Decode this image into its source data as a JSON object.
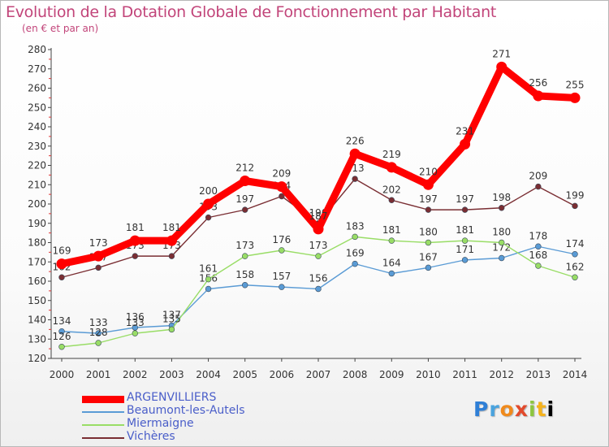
{
  "header": {
    "title": "Evolution de la Dotation Globale de Fonctionnement par Habitant",
    "subtitle": "(en € et par an)"
  },
  "brand": {
    "letters": [
      "P",
      "r",
      "o",
      "x",
      "i",
      "t",
      "i"
    ]
  },
  "chart_data": {
    "type": "line",
    "title": "Evolution de la Dotation Globale de Fonctionnement par Habitant",
    "subtitle": "(en € et par an)",
    "xlabel": "",
    "ylabel": "",
    "x": [
      "2000",
      "2001",
      "2002",
      "2003",
      "2004",
      "2005",
      "2006",
      "2007",
      "2008",
      "2009",
      "2010",
      "2011",
      "2012",
      "2013",
      "2014"
    ],
    "ylim": [
      120,
      280
    ],
    "yticks": [
      120,
      130,
      140,
      150,
      160,
      170,
      180,
      190,
      200,
      210,
      220,
      230,
      240,
      250,
      260,
      270,
      280
    ],
    "grid": false,
    "legend_position": "bottom-left",
    "series": [
      {
        "name": "ARGENVILLIERS",
        "color": "#ff0000",
        "emphasis": true,
        "values": [
          169,
          173,
          181,
          181,
          200,
          212,
          209,
          187,
          226,
          219,
          210,
          231,
          271,
          256,
          255
        ],
        "labels": [
          "169",
          "173",
          "181",
          "181",
          "200",
          "212",
          "209",
          "187",
          "226",
          "219",
          "210",
          "231",
          "271",
          "256",
          "255"
        ]
      },
      {
        "name": "Beaumont-les-Autels",
        "color": "#5a9bd5",
        "values": [
          134,
          133,
          136,
          137,
          156,
          158,
          157,
          156,
          169,
          164,
          167,
          171,
          172,
          178,
          174
        ],
        "labels": [
          "134",
          "133",
          "136",
          "137",
          "156",
          "158",
          "157",
          "156",
          "169",
          "164",
          "167",
          "171",
          "172",
          "178",
          "174"
        ]
      },
      {
        "name": "Miermaigne",
        "color": "#99dd66",
        "values": [
          126,
          128,
          133,
          135,
          161,
          173,
          176,
          173,
          183,
          181,
          180,
          181,
          180,
          168,
          162
        ],
        "labels": [
          "126",
          "128",
          "133",
          "135",
          "161",
          "173",
          "176",
          "173",
          "183",
          "181",
          "180",
          "181",
          "180",
          "168",
          "162"
        ]
      },
      {
        "name": "Vichères",
        "color": "#7a2e33",
        "values": [
          162,
          167,
          173,
          173,
          193,
          197,
          204,
          190,
          213,
          202,
          197,
          197,
          198,
          209,
          199
        ],
        "labels": [
          "162",
          "167",
          "173",
          "173",
          "193",
          "197",
          "204",
          "190",
          "213",
          "202",
          "197",
          "197",
          "198",
          "209",
          "199"
        ]
      }
    ]
  }
}
